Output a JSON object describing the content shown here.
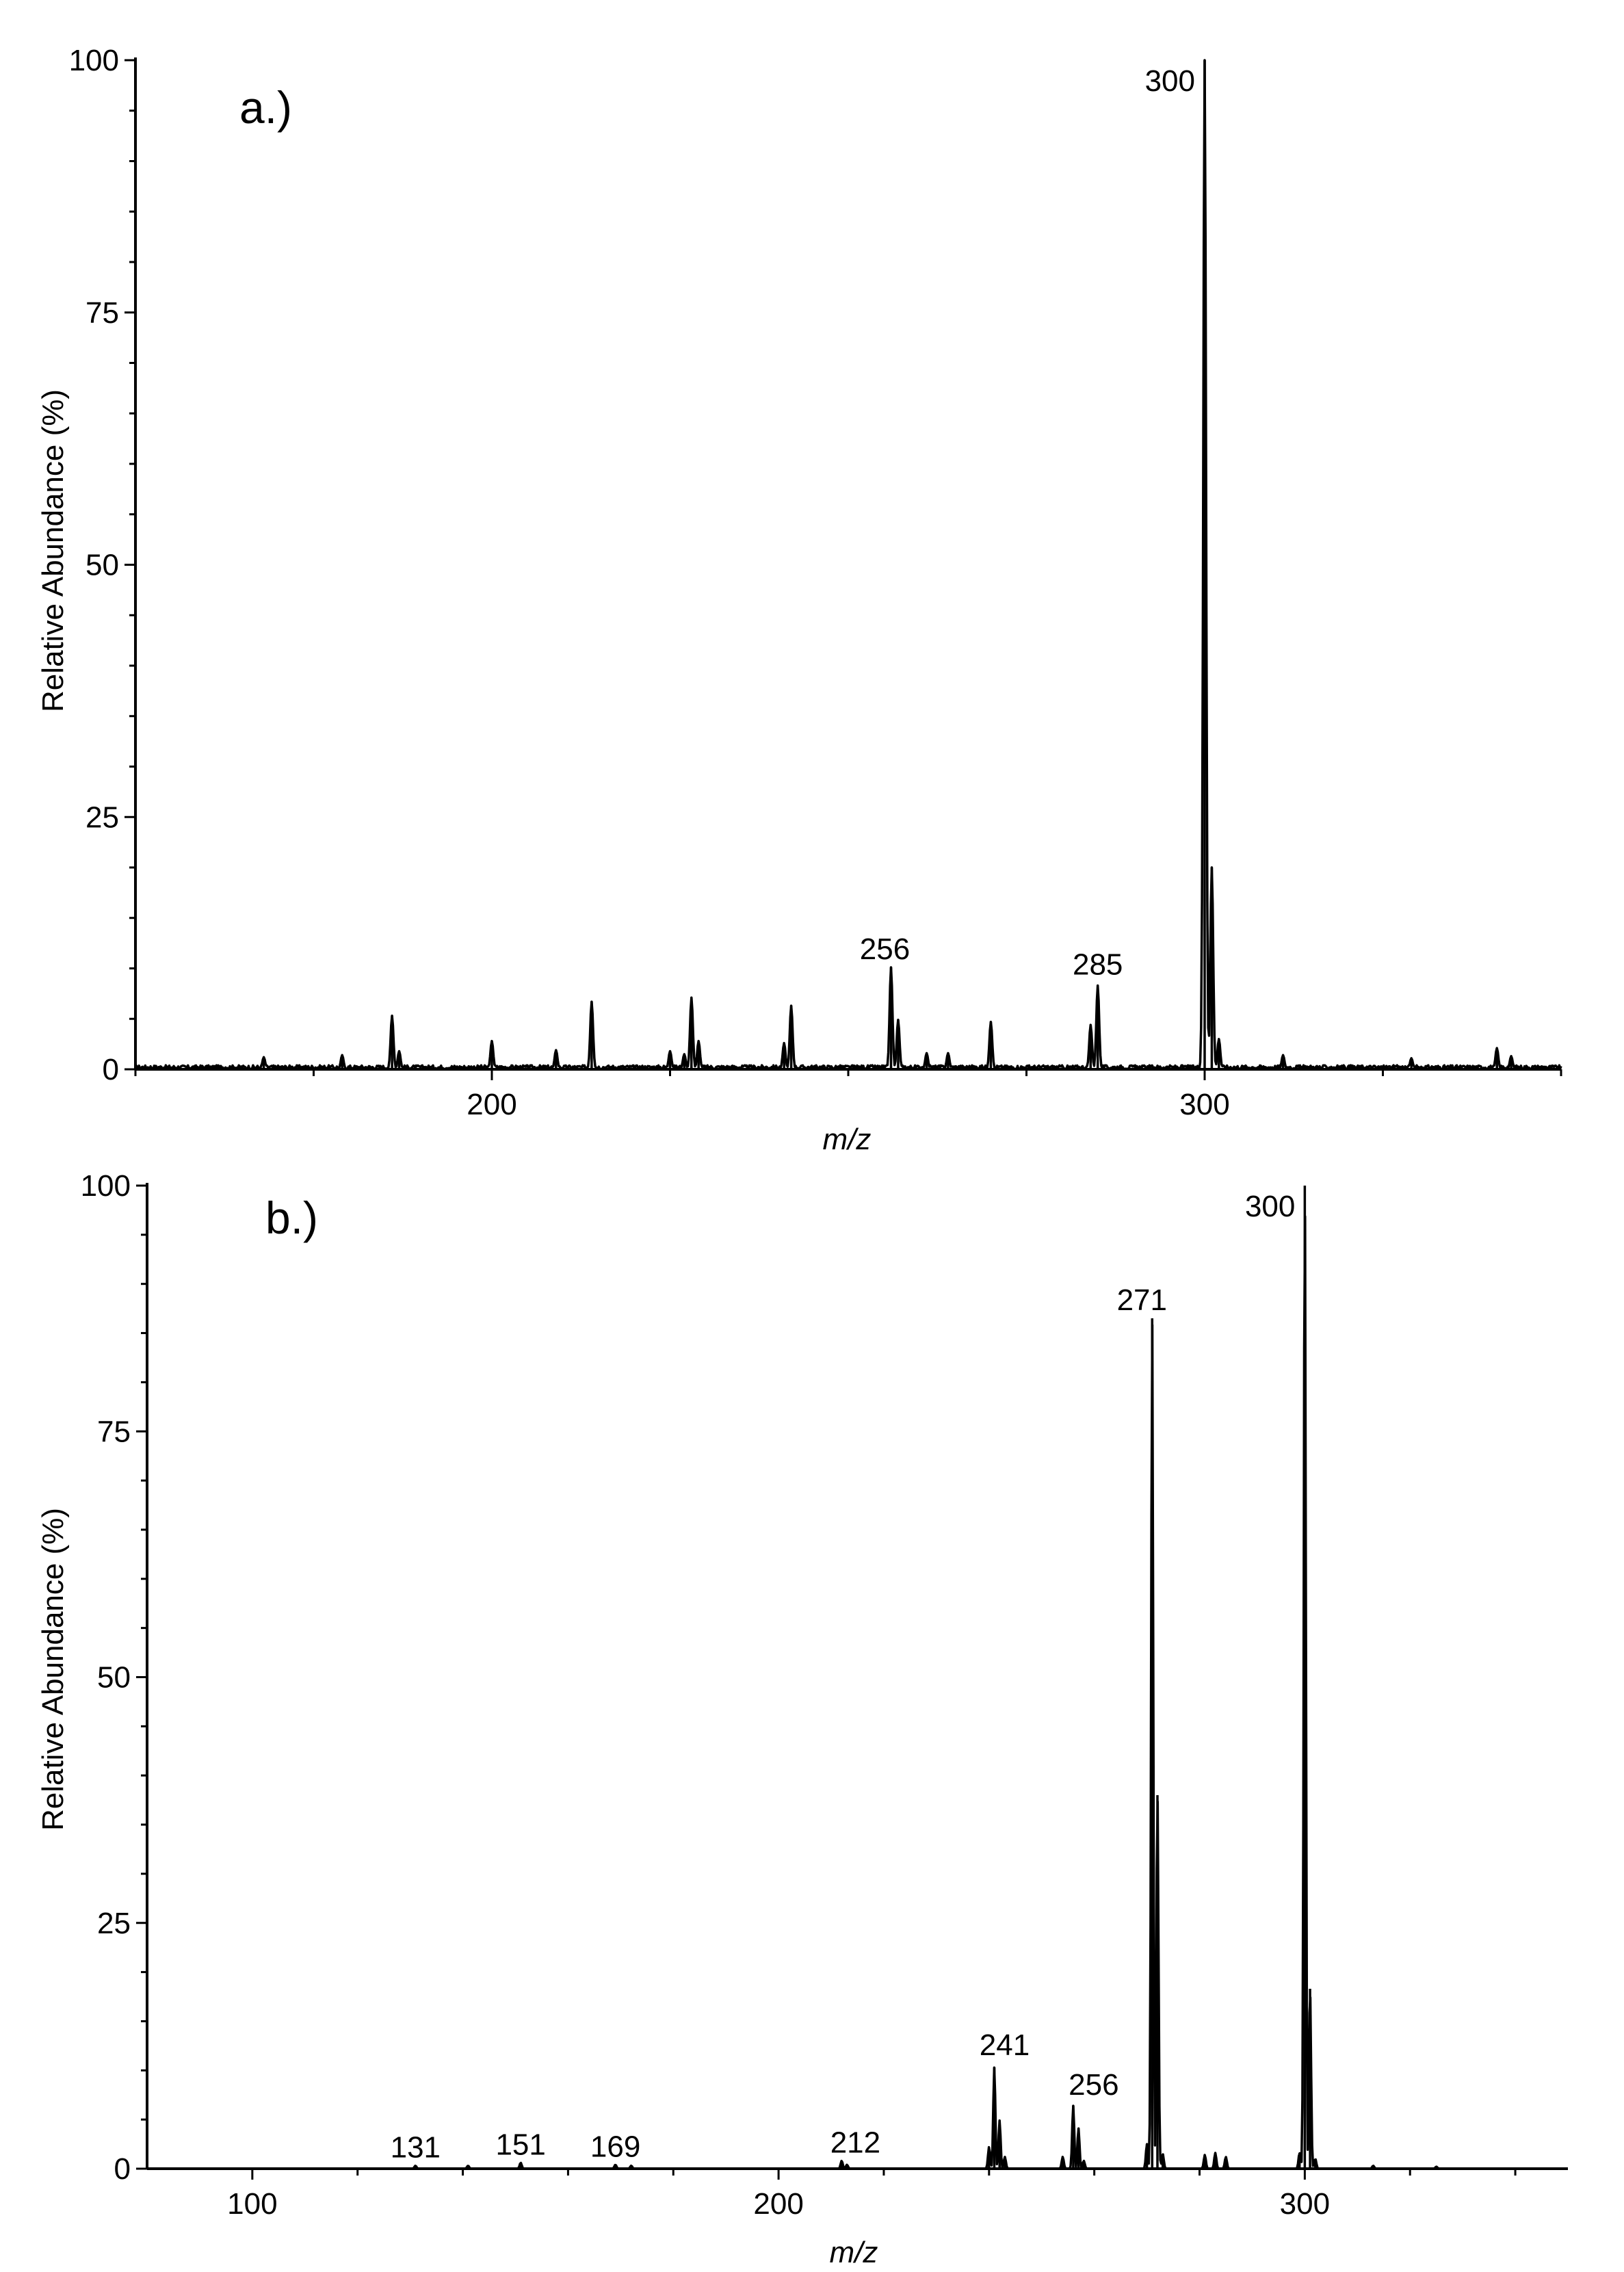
{
  "chart_data": [
    {
      "type": "line",
      "panel_label": "a.)",
      "xlabel": "m/z",
      "ylabel": "Relative Abundance  (%)",
      "xlim": [
        150,
        350
      ],
      "ylim": [
        0,
        100
      ],
      "x_ticks": [
        200,
        300
      ],
      "y_ticks": [
        0,
        25,
        50,
        75,
        100
      ],
      "baseline_noise": 0.4,
      "peaks": [
        {
          "x": 168,
          "y": 1.2
        },
        {
          "x": 179,
          "y": 1.4
        },
        {
          "x": 186,
          "y": 5.3
        },
        {
          "x": 187,
          "y": 1.8
        },
        {
          "x": 200,
          "y": 2.8
        },
        {
          "x": 209,
          "y": 1.9
        },
        {
          "x": 214,
          "y": 6.7
        },
        {
          "x": 225,
          "y": 1.8
        },
        {
          "x": 227,
          "y": 1.5
        },
        {
          "x": 228,
          "y": 7.1
        },
        {
          "x": 229,
          "y": 2.8
        },
        {
          "x": 241,
          "y": 2.6
        },
        {
          "x": 242,
          "y": 6.3
        },
        {
          "x": 256,
          "y": 10.1
        },
        {
          "x": 257,
          "y": 4.9
        },
        {
          "x": 261,
          "y": 1.6
        },
        {
          "x": 264,
          "y": 1.6
        },
        {
          "x": 270,
          "y": 4.7
        },
        {
          "x": 284,
          "y": 4.4
        },
        {
          "x": 285,
          "y": 8.3
        },
        {
          "x": 300,
          "y": 100
        },
        {
          "x": 301,
          "y": 20
        },
        {
          "x": 302,
          "y": 3
        },
        {
          "x": 311,
          "y": 1.4
        },
        {
          "x": 329,
          "y": 1.1
        },
        {
          "x": 341,
          "y": 2.1
        },
        {
          "x": 343,
          "y": 1.3
        }
      ],
      "annotations": [
        {
          "text": "300",
          "x": 300,
          "y": 100
        },
        {
          "text": "256",
          "x": 256,
          "y": 10.1
        },
        {
          "text": "285",
          "x": 285,
          "y": 8.3
        }
      ]
    },
    {
      "type": "line",
      "panel_label": "b.)",
      "xlabel": "m/z",
      "ylabel": "Relative Abundance  (%)",
      "xlim": [
        80,
        350
      ],
      "ylim": [
        0,
        100
      ],
      "x_ticks": [
        100,
        200,
        300
      ],
      "y_ticks": [
        0,
        25,
        50,
        75,
        100
      ],
      "baseline_noise": 0,
      "peaks": [
        {
          "x": 131,
          "y": 0.3
        },
        {
          "x": 141,
          "y": 0.3
        },
        {
          "x": 151,
          "y": 0.6
        },
        {
          "x": 169,
          "y": 0.4
        },
        {
          "x": 172,
          "y": 0.3
        },
        {
          "x": 212,
          "y": 0.8
        },
        {
          "x": 213,
          "y": 0.4
        },
        {
          "x": 240,
          "y": 2.2
        },
        {
          "x": 241,
          "y": 10.3
        },
        {
          "x": 242,
          "y": 4.9
        },
        {
          "x": 243,
          "y": 1.2
        },
        {
          "x": 254,
          "y": 1.2
        },
        {
          "x": 256,
          "y": 6.4
        },
        {
          "x": 257,
          "y": 4.1
        },
        {
          "x": 258,
          "y": 0.8
        },
        {
          "x": 270,
          "y": 2.5
        },
        {
          "x": 271,
          "y": 86.5
        },
        {
          "x": 272,
          "y": 38
        },
        {
          "x": 273,
          "y": 1.5
        },
        {
          "x": 281,
          "y": 1.4
        },
        {
          "x": 283,
          "y": 1.6
        },
        {
          "x": 285,
          "y": 1.2
        },
        {
          "x": 299,
          "y": 1.6
        },
        {
          "x": 300,
          "y": 100
        },
        {
          "x": 301,
          "y": 18.3
        },
        {
          "x": 302,
          "y": 1.0
        },
        {
          "x": 313,
          "y": 0.3
        },
        {
          "x": 325,
          "y": 0.2
        }
      ],
      "annotations": [
        {
          "text": "300",
          "x": 300,
          "y": 100
        },
        {
          "text": "271",
          "x": 271,
          "y": 86.5
        },
        {
          "text": "241",
          "x": 241,
          "y": 10.3
        },
        {
          "text": "256",
          "x": 256,
          "y": 6.4
        },
        {
          "text": "131",
          "x": 131,
          "y": 0.3
        },
        {
          "text": "151",
          "x": 151,
          "y": 0.6
        },
        {
          "text": "169",
          "x": 169,
          "y": 0.4
        },
        {
          "text": "212",
          "x": 212,
          "y": 0.8
        }
      ]
    }
  ]
}
